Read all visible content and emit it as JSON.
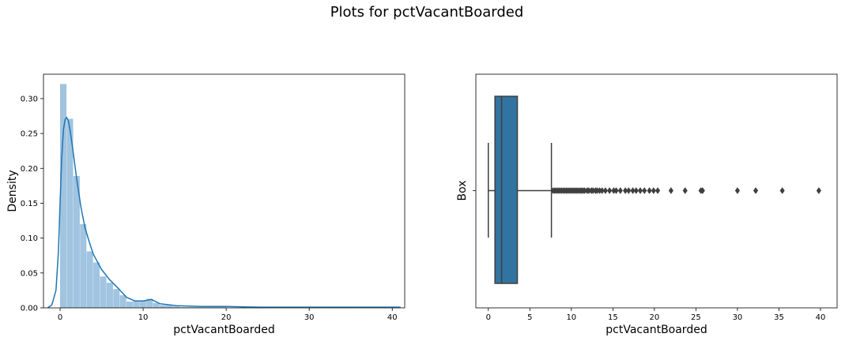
{
  "figure": {
    "title": "Plots for pctVacantBoarded"
  },
  "chart_data": [
    {
      "type": "histogram",
      "title": "",
      "xlabel": "pctVacantBoarded",
      "ylabel": "Density",
      "xlim": [
        -2,
        41.5
      ],
      "ylim": [
        0,
        0.335
      ],
      "xticks": [
        0,
        10,
        20,
        30,
        40
      ],
      "yticks": [
        0.0,
        0.05,
        0.1,
        0.15,
        0.2,
        0.25,
        0.3
      ],
      "grid": false,
      "bin_edges": [
        0,
        0.8,
        1.6,
        2.4,
        3.2,
        4.0,
        4.8,
        5.6,
        6.4,
        7.2,
        8.0,
        8.8,
        9.6,
        10.4,
        11.2,
        12.0,
        12.8,
        13.6,
        14.4,
        15.2,
        16.0,
        16.8,
        17.6,
        18.4,
        19.2,
        20.0,
        20.8,
        21.6,
        22.4,
        23.2,
        24.0,
        24.8,
        25.6,
        26.4,
        27.2,
        28.0,
        28.8,
        29.6,
        30.4,
        31.2,
        32.0,
        32.8,
        33.6,
        34.4,
        35.2,
        36.0,
        36.8,
        37.6,
        38.4,
        39.2,
        40.0
      ],
      "bin_values": [
        0.321,
        0.271,
        0.189,
        0.12,
        0.081,
        0.065,
        0.045,
        0.036,
        0.027,
        0.018,
        0.009,
        0.01,
        0.01,
        0.013,
        0.007,
        0.004,
        0.004,
        0.002,
        0.001,
        0.001,
        0.001,
        0.001,
        0.001,
        0.001,
        0.001,
        0.0,
        0.0,
        0.001,
        0.0,
        0.001,
        0.0,
        0.0,
        0.001,
        0.0,
        0.0,
        0.0,
        0.0,
        0.0,
        0.0,
        0.001,
        0.0,
        0.0,
        0.0,
        0.0,
        0.001,
        0.0,
        0.0,
        0.0,
        0.0,
        0.001
      ],
      "kde": {
        "x": [
          -1.5,
          -1.0,
          -0.5,
          -0.2,
          0.0,
          0.2,
          0.4,
          0.6,
          0.8,
          1.0,
          1.2,
          1.5,
          2.0,
          2.5,
          3.0,
          3.5,
          4.0,
          5.0,
          6.0,
          7.0,
          8.0,
          9.0,
          10.0,
          11.0,
          12.0,
          14.0,
          17.0,
          20.0,
          24.0,
          26.0,
          30.0,
          35.0,
          38.0,
          41.0
        ],
        "y": [
          0.0,
          0.004,
          0.025,
          0.08,
          0.15,
          0.215,
          0.255,
          0.27,
          0.273,
          0.268,
          0.255,
          0.23,
          0.185,
          0.145,
          0.115,
          0.095,
          0.077,
          0.055,
          0.04,
          0.028,
          0.015,
          0.01,
          0.01,
          0.012,
          0.006,
          0.003,
          0.002,
          0.002,
          0.001,
          0.001,
          0.001,
          0.001,
          0.001,
          0.001
        ]
      },
      "colors": {
        "bar": "#a1c4e0",
        "kde": "#1f77b4"
      }
    },
    {
      "type": "box",
      "title": "",
      "xlabel": "pctVacantBoarded",
      "ylabel": "Box",
      "xlim": [
        -1.5,
        42
      ],
      "xticks": [
        0,
        5,
        10,
        15,
        20,
        25,
        30,
        35,
        40
      ],
      "grid": false,
      "whisker_low": 0.0,
      "q1": 0.8,
      "median": 1.6,
      "q3": 3.5,
      "whisker_high": 7.6,
      "outliers": [
        7.8,
        8.0,
        8.2,
        8.4,
        8.6,
        8.8,
        9.0,
        9.2,
        9.4,
        9.6,
        9.8,
        10.0,
        10.2,
        10.4,
        10.6,
        10.8,
        11.0,
        11.2,
        11.4,
        11.6,
        11.9,
        12.1,
        12.4,
        12.6,
        12.9,
        13.1,
        13.4,
        13.7,
        14.1,
        14.6,
        15.1,
        15.4,
        15.9,
        16.5,
        16.9,
        17.4,
        17.8,
        18.3,
        18.8,
        19.4,
        19.9,
        20.4,
        22.0,
        23.7,
        25.6,
        25.8,
        30.0,
        32.2,
        35.4,
        39.8
      ],
      "colors": {
        "box": "#3274a1",
        "line": "#3f3f3f",
        "outlier": "#3f3f3f"
      }
    }
  ]
}
